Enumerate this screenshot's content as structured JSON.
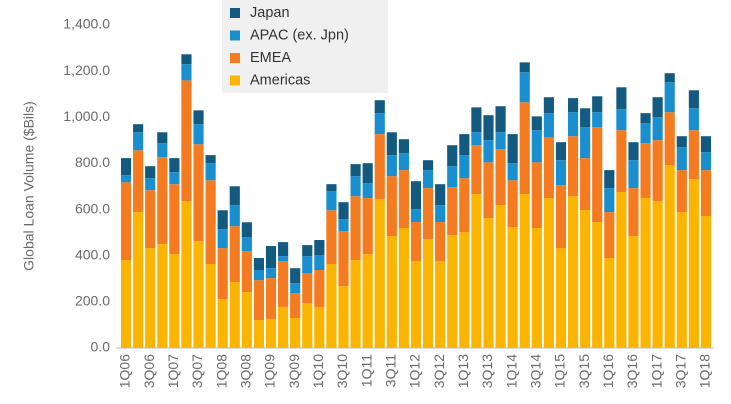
{
  "chart_data": {
    "type": "stacked_bar",
    "y_label": "Global Loan Volume ($Bils)",
    "categories": [
      "1Q06",
      null,
      "3Q06",
      null,
      "1Q07",
      null,
      "3Q07",
      null,
      "1Q08",
      null,
      "3Q08",
      null,
      "1Q09",
      null,
      "3Q09",
      null,
      "1Q10",
      null,
      "3Q10",
      null,
      "1Q11",
      null,
      "3Q11",
      null,
      "1Q12",
      null,
      "3Q12",
      null,
      "1Q13",
      null,
      "3Q13",
      null,
      "1Q14",
      null,
      "3Q14",
      null,
      "1Q15",
      null,
      "3Q15",
      null,
      "1Q16",
      null,
      "3Q16",
      null,
      "1Q17",
      null,
      "3Q17",
      null,
      "1Q18"
    ],
    "series": [
      {
        "name": "Americas",
        "color": "#fbb500",
        "values": [
          381,
          589,
          433,
          450,
          407,
          636,
          463,
          364,
          212,
          286,
          242,
          121,
          126,
          178,
          130,
          195,
          178,
          364,
          268,
          381,
          407,
          645,
          485,
          520,
          377,
          472,
          377,
          489,
          502,
          667,
          563,
          619,
          524,
          667,
          520,
          650,
          433,
          658,
          598,
          546,
          390,
          676,
          485,
          650,
          636,
          792,
          589,
          732,
          572
        ]
      },
      {
        "name": "EMEA",
        "color": "#f47b20",
        "values": [
          337,
          268,
          251,
          377,
          303,
          524,
          420,
          363,
          221,
          242,
          178,
          173,
          177,
          199,
          108,
          130,
          160,
          233,
          238,
          277,
          243,
          282,
          260,
          251,
          169,
          221,
          169,
          208,
          234,
          212,
          242,
          243,
          203,
          398,
          285,
          263,
          273,
          260,
          225,
          411,
          199,
          268,
          208,
          238,
          265,
          230,
          182,
          212,
          199
        ]
      },
      {
        "name": "APAC (ex. Jpn)",
        "color": "#1a8fd0",
        "values": [
          31,
          78,
          52,
          61,
          52,
          70,
          87,
          74,
          82,
          91,
          61,
          44,
          43,
          21,
          43,
          73,
          65,
          83,
          53,
          87,
          64,
          91,
          91,
          73,
          56,
          78,
          73,
          91,
          100,
          56,
          96,
          73,
          74,
          130,
          139,
          105,
          108,
          104,
          134,
          65,
          104,
          91,
          121,
          86,
          99,
          130,
          99,
          95,
          78
        ]
      },
      {
        "name": "Japan",
        "color": "#135a80",
        "values": [
          74,
          35,
          52,
          47,
          61,
          43,
          60,
          35,
          82,
          82,
          64,
          52,
          96,
          61,
          65,
          48,
          65,
          30,
          73,
          52,
          87,
          56,
          99,
          61,
          121,
          43,
          91,
          91,
          91,
          108,
          108,
          113,
          126,
          43,
          60,
          69,
          78,
          61,
          82,
          69,
          78,
          95,
          78,
          44,
          87,
          39,
          48,
          78,
          69
        ]
      }
    ],
    "ylim": [
      0,
      1400
    ],
    "yticks": [
      {
        "value": 0,
        "label": "0.0"
      },
      {
        "value": 200,
        "label": "200.0"
      },
      {
        "value": 400,
        "label": "400.0"
      },
      {
        "value": 600,
        "label": "600.0"
      },
      {
        "value": 800,
        "label": "800.0"
      },
      {
        "value": 1000,
        "label": "1,000.0"
      },
      {
        "value": 1200,
        "label": "1,200.0"
      },
      {
        "value": 1400,
        "label": "1,400.0"
      }
    ]
  }
}
